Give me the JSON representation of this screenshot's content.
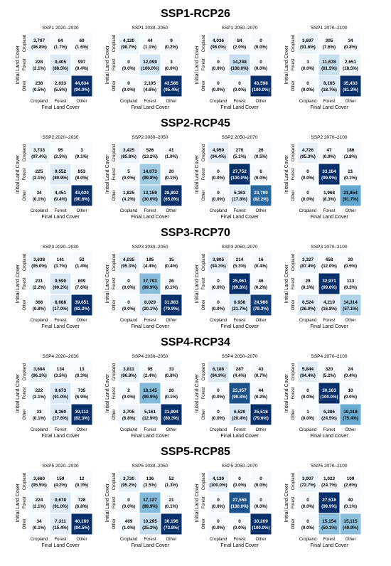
{
  "figure": {
    "rows": [
      {
        "title": "SSP1-RCP26",
        "panels": [
          {
            "title": "SSP1 2020–2030",
            "counts": [
              [
                3707,
                64,
                60
              ],
              [
                228,
                9405,
                997
              ],
              [
                238,
                2633,
                44634
              ]
            ],
            "percents": [
              "96.8%",
              "1.7%",
              "1.6%",
              "2.1%",
              "88.5%",
              "9.4%",
              "0.5%",
              "5.5%",
              "94.0%"
            ]
          },
          {
            "title": "SSP1 2030–2050",
            "counts": [
              [
                4120,
                44,
                9
              ],
              [
                0,
                12099,
                3
              ],
              [
                0,
                2105,
                43586
              ]
            ],
            "percents": [
              "98.7%",
              "1.1%",
              "0.2%",
              "0.0%",
              "100.0%",
              "0.0%",
              "0.0%",
              "4.6%",
              "95.4%"
            ]
          },
          {
            "title": "SSP1 2050–2070",
            "counts": [
              [
                4036,
                84,
                0
              ],
              [
                0,
                14248,
                0
              ],
              [
                0,
                0,
                43598
              ]
            ],
            "percents": [
              "98.0%",
              "2.0%",
              "0.0%",
              "0.0%",
              "100.0%",
              "0.0%",
              "0.0%",
              "0.0%",
              "100.0%"
            ]
          },
          {
            "title": "SSP1 2070–2100",
            "counts": [
              [
                3697,
                305,
                34
              ],
              [
                3,
                11678,
                2651
              ],
              [
                0,
                8165,
                35433
              ]
            ],
            "percents": [
              "91.6%",
              "7.6%",
              "0.8%",
              "0.0%",
              "81.5%",
              "18.5%",
              "0.0%",
              "18.7%",
              "81.3%"
            ]
          }
        ]
      },
      {
        "title": "SSP2-RCP45",
        "panels": [
          {
            "title": "SSP2 2020–2030",
            "counts": [
              [
                3733,
                95,
                3
              ],
              [
                225,
                9552,
                853
              ],
              [
                34,
                4451,
                43020
              ]
            ],
            "percents": [
              "97.4%",
              "2.5%",
              "0.1%",
              "2.1%",
              "89.9%",
              "8.0%",
              "0.1%",
              "9.4%",
              "90.6%"
            ]
          },
          {
            "title": "SSP2 2030–2050",
            "counts": [
              [
                3425,
                526,
                41
              ],
              [
                5,
                14073,
                20
              ],
              [
                1825,
                13159,
                28892
              ]
            ],
            "percents": [
              "85.8%",
              "13.2%",
              "1.0%",
              "0.0%",
              "99.8%",
              "0.1%",
              "4.2%",
              "30.0%",
              "65.8%"
            ]
          },
          {
            "title": "SSP2 2050–2070",
            "counts": [
              [
                4959,
                270,
                26
              ],
              [
                0,
                27752,
                6
              ],
              [
                0,
                5163,
                23790
              ]
            ],
            "percents": [
              "94.4%",
              "5.1%",
              "0.5%",
              "0.0%",
              "100.0%",
              "0.0%",
              "0.0%",
              "17.8%",
              "82.2%"
            ]
          },
          {
            "title": "SSP2 2070–2100",
            "counts": [
              [
                4726,
                47,
                186
              ],
              [
                0,
                33164,
                21
              ],
              [
                0,
                1968,
                21854
              ]
            ],
            "percents": [
              "95.3%",
              "0.9%",
              "3.8%",
              "0.0%",
              "99.9%",
              "0.1%",
              "0.0%",
              "8.3%",
              "91.7%"
            ]
          }
        ]
      },
      {
        "title": "SSP3-RCP70",
        "panels": [
          {
            "title": "SSP3 2020–2030",
            "counts": [
              [
                3638,
                141,
                52
              ],
              [
                231,
                9590,
                809
              ],
              [
                366,
                8088,
                39051
              ]
            ],
            "percents": [
              "95.0%",
              "3.7%",
              "1.4%",
              "2.2%",
              "90.2%",
              "7.6%",
              "0.8%",
              "17.0%",
              "82.2%"
            ]
          },
          {
            "title": "SSP3 2030–2050",
            "counts": [
              [
                4035,
                185,
                15
              ],
              [
                0,
                17793,
                26
              ],
              [
                0,
                8029,
                31883
              ]
            ],
            "percents": [
              "95.3%",
              "4.4%",
              "0.4%",
              "0.0%",
              "99.9%",
              "0.1%",
              "0.0%",
              "20.1%",
              "79.9%"
            ]
          },
          {
            "title": "SSP3 2050–2070",
            "counts": [
              [
                3805,
                214,
                16
              ],
              [
                0,
                25961,
                46
              ],
              [
                0,
                6938,
                24986
              ]
            ],
            "percents": [
              "94.3%",
              "5.3%",
              "0.4%",
              "0.0%",
              "99.8%",
              "0.2%",
              "0.0%",
              "21.7%",
              "78.3%"
            ]
          },
          {
            "title": "SSP3 2070–2100",
            "counts": [
              [
                3327,
                458,
                20
              ],
              [
                29,
                32971,
                113
              ],
              [
                6524,
                4210,
                14314
              ]
            ],
            "percents": [
              "87.4%",
              "12.0%",
              "0.5%",
              "0.1%",
              "99.6%",
              "0.3%",
              "26.0%",
              "16.8%",
              "57.1%"
            ]
          }
        ]
      },
      {
        "title": "SSP4-RCP34",
        "panels": [
          {
            "title": "SSP4 2020–2030",
            "counts": [
              [
                3684,
                134,
                13
              ],
              [
                222,
                9673,
                735
              ],
              [
                33,
                8360,
                39112
              ]
            ],
            "percents": [
              "96.2%",
              "3.5%",
              "0.3%",
              "2.1%",
              "91.0%",
              "6.9%",
              "0.1%",
              "17.6%",
              "82.3%"
            ]
          },
          {
            "title": "SSP4 2030–2050",
            "counts": [
              [
                3811,
                95,
                33
              ],
              [
                2,
                18145,
                20
              ],
              [
                2705,
                5161,
                31994
              ]
            ],
            "percents": [
              "96.8%",
              "2.4%",
              "0.8%",
              "0.0%",
              "99.9%",
              "0.1%",
              "6.8%",
              "12.9%",
              "80.3%"
            ]
          },
          {
            "title": "SSP4 2050–2070",
            "counts": [
              [
                6188,
                287,
                43
              ],
              [
                0,
                23357,
                44
              ],
              [
                0,
                6529,
                25518
              ]
            ],
            "percents": [
              "94.9%",
              "4.4%",
              "0.7%",
              "0.0%",
              "99.8%",
              "0.2%",
              "0.0%",
              "20.4%",
              "79.6%"
            ]
          },
          {
            "title": "SSP4 2070–2100",
            "counts": [
              [
                5844,
                320,
                24
              ],
              [
                0,
                30163,
                10
              ],
              [
                1,
                6286,
                19318
              ]
            ],
            "percents": [
              "94.4%",
              "5.2%",
              "0.4%",
              "0.0%",
              "100.0%",
              "0.0%",
              "0.0%",
              "24.5%",
              "75.4%"
            ]
          }
        ]
      },
      {
        "title": "SSP5-RCP85",
        "panels": [
          {
            "title": "SSP5 2020–2030",
            "counts": [
              [
                3660,
                159,
                12
              ],
              [
                224,
                9678,
                728
              ],
              [
                34,
                7311,
                40160
              ]
            ],
            "percents": [
              "95.5%",
              "4.2%",
              "0.3%",
              "2.1%",
              "91.0%",
              "6.8%",
              "0.1%",
              "15.4%",
              "84.5%"
            ]
          },
          {
            "title": "SSP5 2030–2050",
            "counts": [
              [
                3730,
                136,
                52
              ],
              [
                0,
                17127,
                21
              ],
              [
                409,
                10295,
                30196
              ]
            ],
            "percents": [
              "95.2%",
              "3.5%",
              "1.3%",
              "0.0%",
              "99.9%",
              "0.1%",
              "1.0%",
              "25.2%",
              "73.8%"
            ]
          },
          {
            "title": "SSP5 2050–2070",
            "counts": [
              [
                4139,
                0,
                0
              ],
              [
                0,
                27558,
                0
              ],
              [
                0,
                0,
                30269
              ]
            ],
            "percents": [
              "100.0%",
              "0.0%",
              "0.0%",
              "0.0%",
              "100.0%",
              "0.0%",
              "0.0%",
              "0.0%",
              "100.0%"
            ]
          },
          {
            "title": "SSP5 2070–2100",
            "counts": [
              [
                3007,
                1023,
                109
              ],
              [
                0,
                27518,
                40
              ],
              [
                0,
                15154,
                15115
              ]
            ],
            "percents": [
              "72.7%",
              "24.7%",
              "2.6%",
              "0.0%",
              "99.9%",
              "0.1%",
              "0.0%",
              "50.1%",
              "49.9%"
            ]
          }
        ]
      }
    ]
  },
  "chart_data": {
    "type": "heatmap",
    "categories": [
      "Cropland",
      "Forest",
      "Other"
    ],
    "xlabel": "Final Land Cover",
    "ylabel": "Initial Land Cover",
    "colormap": [
      "#f7fbff",
      "#dbe9f6",
      "#9ecae1",
      "#4292c6",
      "#08306b"
    ]
  }
}
